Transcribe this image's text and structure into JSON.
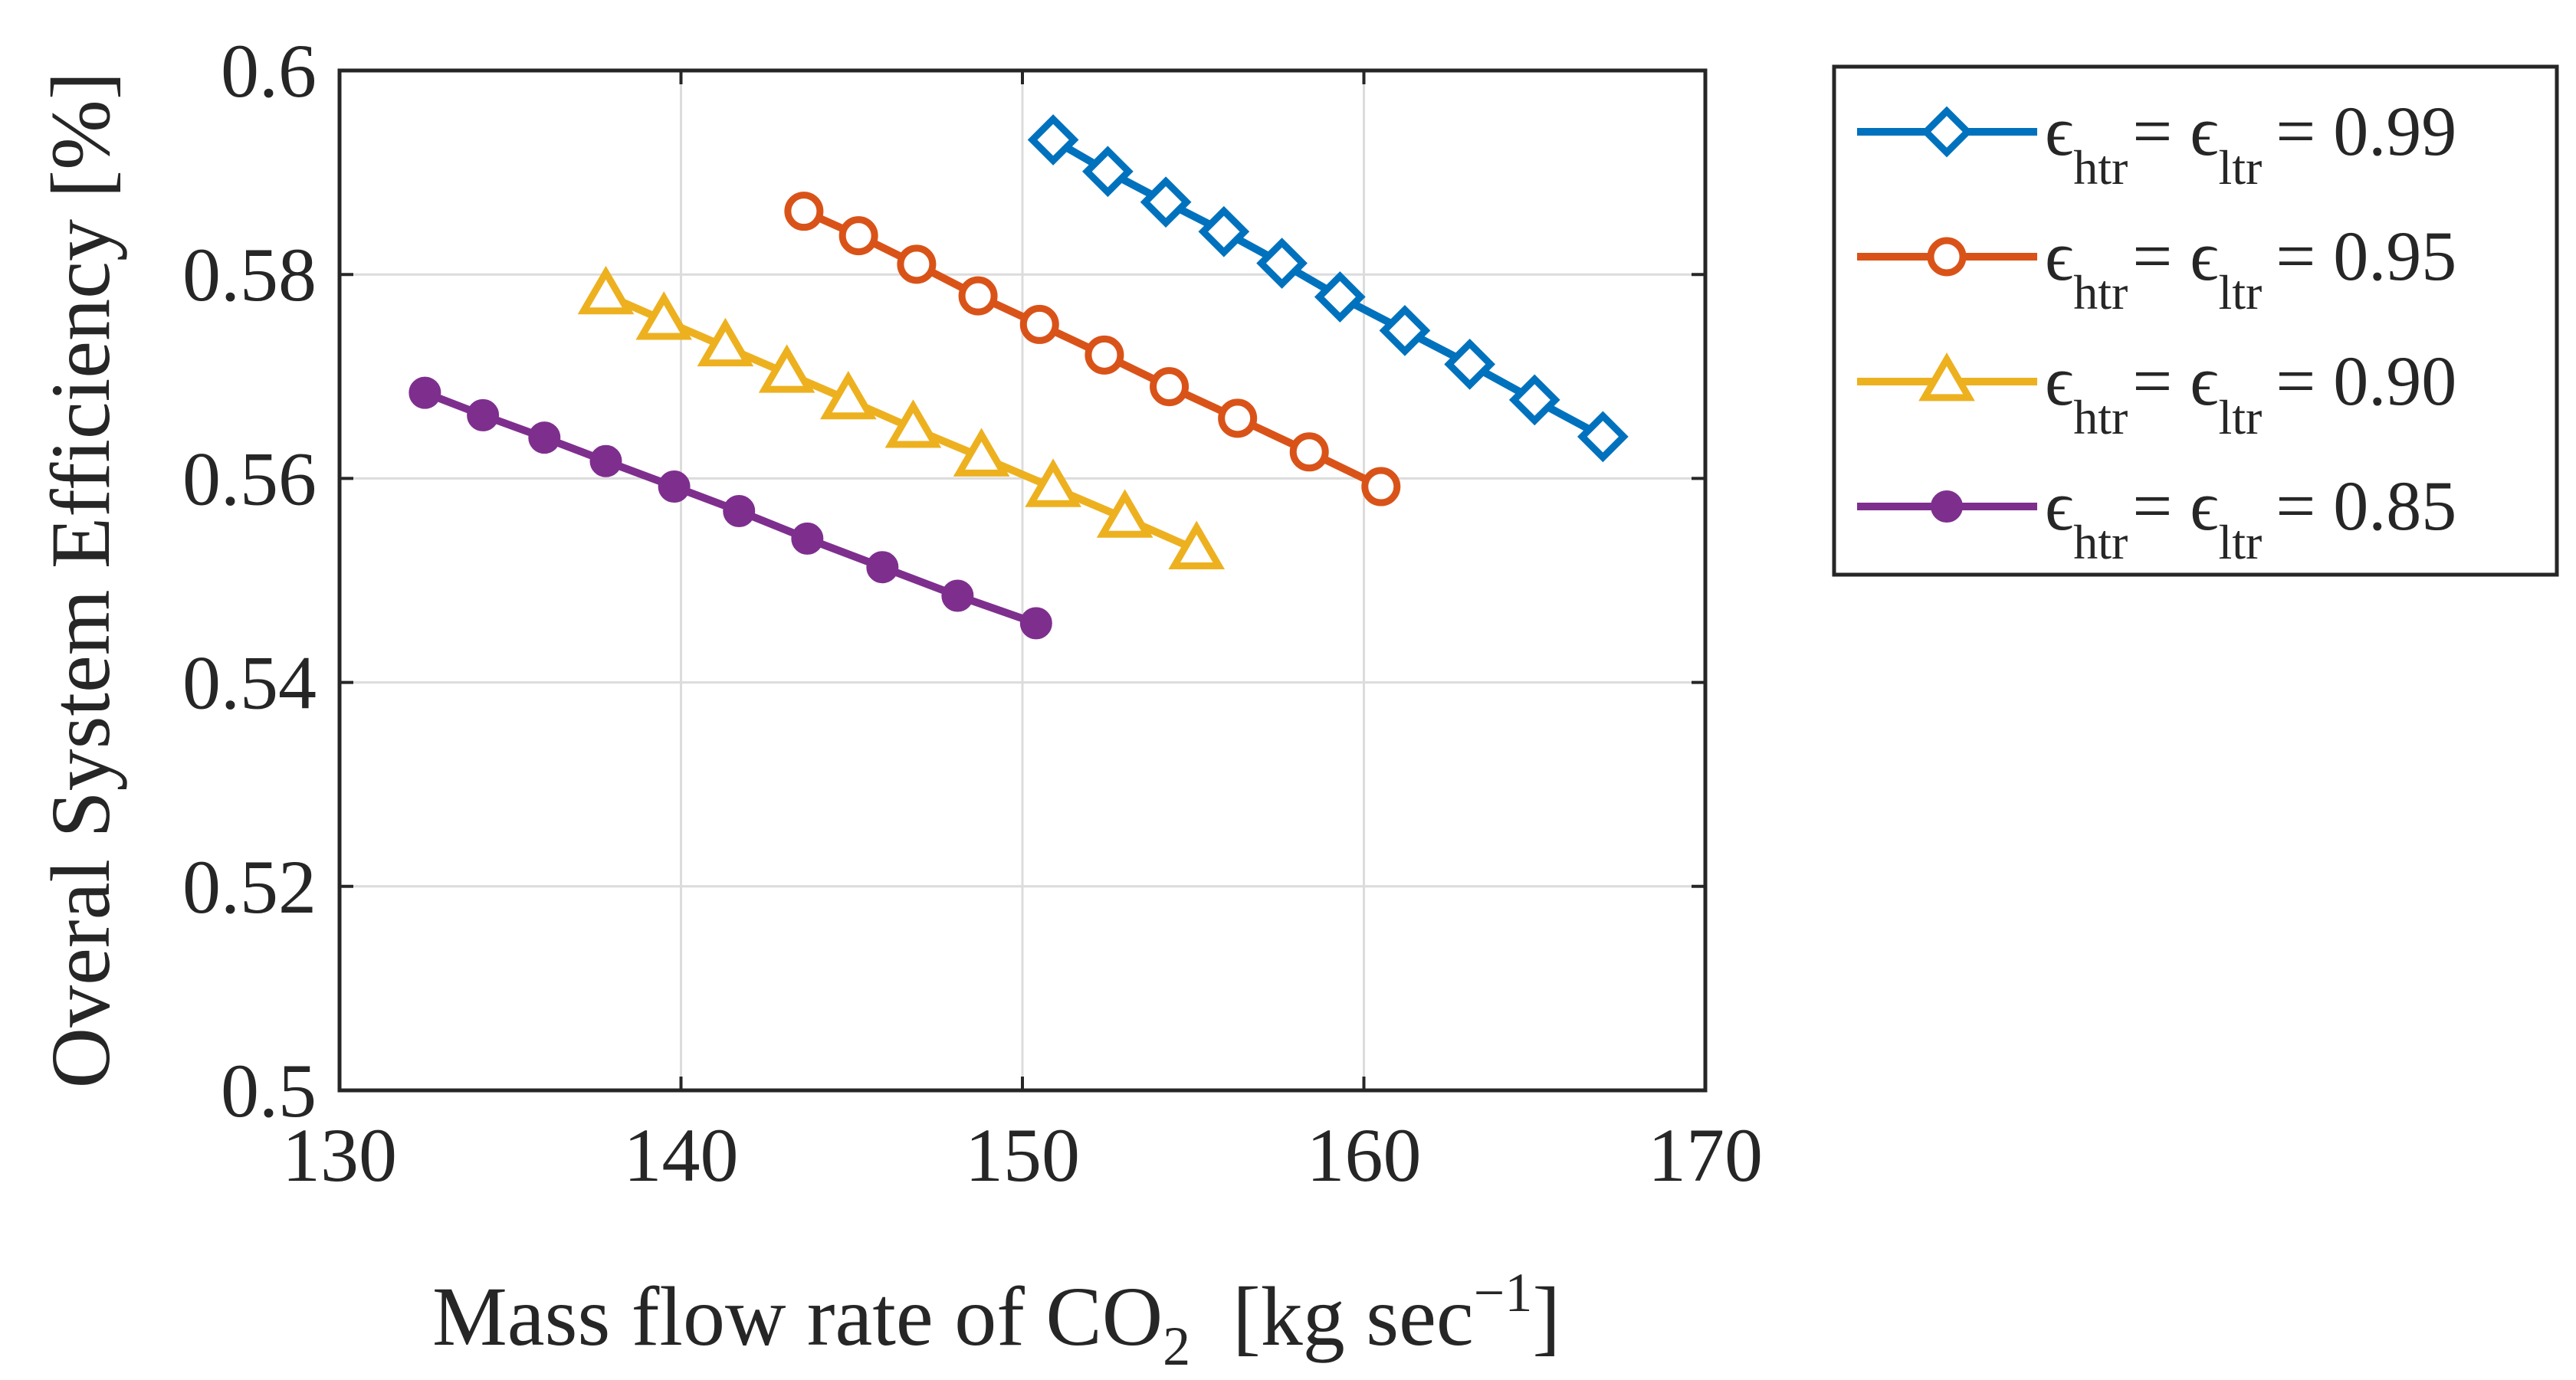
{
  "chart_data": {
    "type": "line",
    "title": "",
    "xlabel": "Mass flow rate of CO",
    "xlabel_sub": "2",
    "xlabel_units": "[kg sec",
    "xlabel_sup": "−1",
    "xlabel_close": "]",
    "ylabel": "Overal System Efficiency [%]",
    "xlim": [
      130,
      170
    ],
    "ylim": [
      0.5,
      0.6
    ],
    "xticks": [
      130,
      140,
      150,
      160,
      170
    ],
    "yticks": [
      0.5,
      0.52,
      0.54,
      0.56,
      0.58,
      0.6
    ],
    "xtick_labels": [
      "130",
      "140",
      "150",
      "160",
      "170"
    ],
    "ytick_labels": [
      "0.5",
      "0.52",
      "0.54",
      "0.56",
      "0.58",
      "0.6"
    ],
    "grid": true,
    "legend_position": "outside-top-right",
    "series": [
      {
        "name": "ε_htr = ε_ltr = 0.99",
        "legend_sym": "ϵ",
        "legend_sub1": "htr",
        "legend_mid": "= ϵ",
        "legend_sub2": "ltr",
        "legend_value": "= 0.99",
        "color": "#0072BD",
        "marker": "diamond",
        "marker_fill": "#ffffff",
        "x": [
          150.9,
          152.5,
          154.2,
          155.9,
          157.6,
          159.3,
          161.2,
          163.1,
          165.0,
          167.0
        ],
        "y": [
          0.5932,
          0.5901,
          0.5871,
          0.5842,
          0.5811,
          0.5778,
          0.5745,
          0.5712,
          0.5677,
          0.5641
        ]
      },
      {
        "name": "ε_htr = ε_ltr = 0.95",
        "legend_sym": "ϵ",
        "legend_sub1": "htr",
        "legend_mid": "= ϵ",
        "legend_sub2": "ltr",
        "legend_value": "= 0.95",
        "color": "#D95319",
        "marker": "circle",
        "marker_fill": "#ffffff",
        "x": [
          143.6,
          145.2,
          146.9,
          148.7,
          150.5,
          152.4,
          154.3,
          156.3,
          158.4,
          160.5
        ],
        "y": [
          0.5862,
          0.5838,
          0.581,
          0.5779,
          0.5751,
          0.5721,
          0.569,
          0.5659,
          0.5626,
          0.5592
        ]
      },
      {
        "name": "ε_htr = ε_ltr = 0.90",
        "legend_sym": "ϵ",
        "legend_sub1": "htr",
        "legend_mid": "= ϵ",
        "legend_sub2": "ltr",
        "legend_value": "= 0.90",
        "color": "#EDB120",
        "marker": "triangle",
        "marker_fill": "#ffffff",
        "x": [
          137.8,
          139.5,
          141.3,
          143.1,
          144.9,
          146.8,
          148.8,
          150.9,
          153.0,
          155.1
        ],
        "y": [
          0.578,
          0.5755,
          0.5729,
          0.5703,
          0.5677,
          0.5649,
          0.5621,
          0.5591,
          0.5561,
          0.553
        ]
      },
      {
        "name": "ε_htr = ε_ltr = 0.85",
        "legend_sym": "ϵ",
        "legend_sub1": "htr",
        "legend_mid": "= ϵ",
        "legend_sub2": "ltr",
        "legend_value": "= 0.85",
        "color": "#7E2F8E",
        "marker": "filled-circle",
        "marker_fill": "#7E2F8E",
        "x": [
          132.5,
          134.2,
          136.0,
          137.8,
          139.8,
          141.7,
          143.7,
          145.9,
          148.1,
          150.4
        ],
        "y": [
          0.5684,
          0.5662,
          0.564,
          0.5617,
          0.5592,
          0.5568,
          0.5541,
          0.5513,
          0.5485,
          0.5458
        ]
      }
    ]
  }
}
